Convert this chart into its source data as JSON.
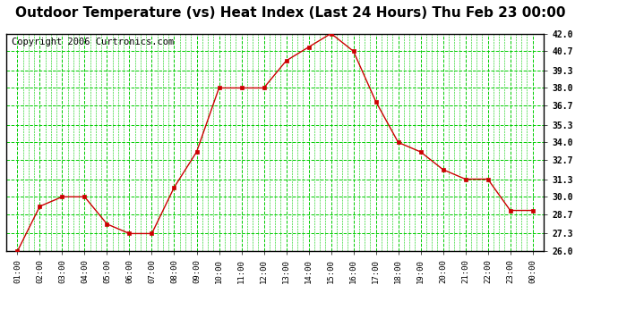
{
  "title": "Outdoor Temperature (vs) Heat Index (Last 24 Hours) Thu Feb 23 00:00",
  "copyright": "Copyright 2006 Curtronics.com",
  "x_labels": [
    "01:00",
    "02:00",
    "03:00",
    "04:00",
    "05:00",
    "06:00",
    "07:00",
    "08:00",
    "09:00",
    "10:00",
    "11:00",
    "12:00",
    "13:00",
    "14:00",
    "15:00",
    "16:00",
    "17:00",
    "18:00",
    "19:00",
    "20:00",
    "21:00",
    "22:00",
    "23:00",
    "00:00"
  ],
  "y_values": [
    26.0,
    29.3,
    30.0,
    30.0,
    28.0,
    27.3,
    27.3,
    30.7,
    33.3,
    38.0,
    38.0,
    38.0,
    40.0,
    41.0,
    42.0,
    40.7,
    37.0,
    34.0,
    33.3,
    32.0,
    31.3,
    31.3,
    29.0,
    29.0
  ],
  "y_min": 26.0,
  "y_max": 42.0,
  "y_ticks": [
    26.0,
    27.3,
    28.7,
    30.0,
    31.3,
    32.7,
    34.0,
    35.3,
    36.7,
    38.0,
    39.3,
    40.7,
    42.0
  ],
  "line_color": "#cc0000",
  "marker_color": "#cc0000",
  "bg_color": "#ffffff",
  "plot_bg_color": "#ffffff",
  "grid_color": "#00cc00",
  "title_fontsize": 11,
  "copyright_fontsize": 7.5
}
